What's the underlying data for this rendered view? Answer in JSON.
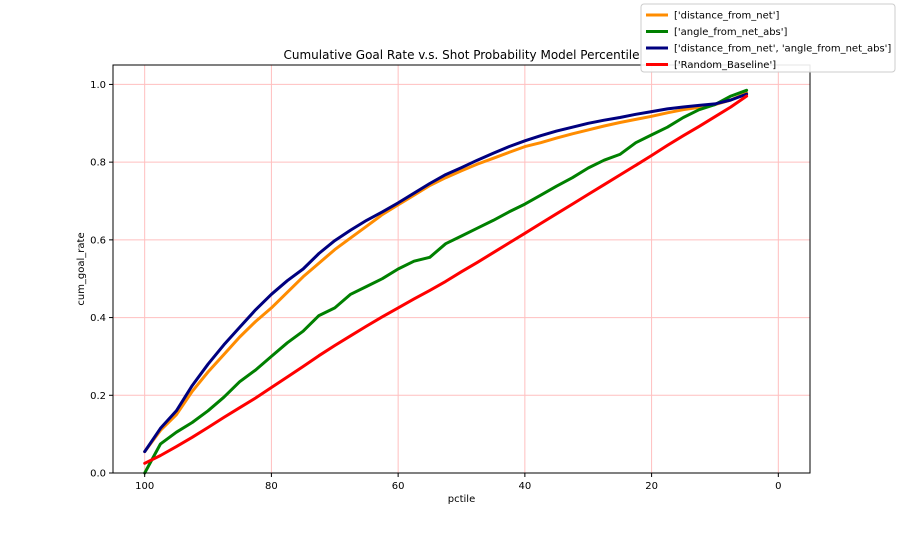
{
  "chart_data": {
    "type": "line",
    "title": "Cumulative Goal Rate v.s. Shot Probability Model Percentile",
    "xlabel": "pctile",
    "ylabel": "cum_goal_rate",
    "xlim": [
      105,
      -5
    ],
    "ylim": [
      0,
      1.05
    ],
    "x_ticks": [
      100,
      80,
      60,
      40,
      20,
      0
    ],
    "y_ticks": [
      0.0,
      0.2,
      0.4,
      0.6,
      0.8,
      1.0
    ],
    "x_tick_labels": [
      "100",
      "80",
      "60",
      "40",
      "20",
      "0"
    ],
    "y_tick_labels": [
      "0.0",
      "0.2",
      "0.4",
      "0.6",
      "0.8",
      "1.0"
    ],
    "grid": true,
    "grid_color": "#ffbfbf",
    "legend_position": "top-right",
    "x": [
      100,
      97.5,
      95,
      92.5,
      90,
      87.5,
      85,
      82.5,
      80,
      77.5,
      75,
      72.5,
      70,
      67.5,
      65,
      62.5,
      60,
      57.5,
      55,
      52.5,
      50,
      47.5,
      45,
      42.5,
      40,
      37.5,
      35,
      32.5,
      30,
      27.5,
      25,
      22.5,
      20,
      17.5,
      15,
      12.5,
      10,
      7.5,
      5
    ],
    "series": [
      {
        "name": "['distance_from_net']",
        "color": "#ff8c00",
        "values": [
          0.055,
          0.11,
          0.15,
          0.21,
          0.26,
          0.305,
          0.35,
          0.39,
          0.425,
          0.465,
          0.505,
          0.54,
          0.575,
          0.605,
          0.635,
          0.665,
          0.69,
          0.715,
          0.74,
          0.76,
          0.778,
          0.795,
          0.81,
          0.825,
          0.84,
          0.85,
          0.862,
          0.873,
          0.883,
          0.893,
          0.902,
          0.91,
          0.918,
          0.927,
          0.935,
          0.941,
          0.948,
          0.96,
          0.978
        ]
      },
      {
        "name": "['angle_from_net_abs']",
        "color": "#008000",
        "values": [
          0.0,
          0.075,
          0.105,
          0.13,
          0.16,
          0.195,
          0.235,
          0.265,
          0.3,
          0.335,
          0.365,
          0.405,
          0.425,
          0.46,
          0.48,
          0.5,
          0.525,
          0.545,
          0.555,
          0.59,
          0.61,
          0.63,
          0.65,
          0.672,
          0.692,
          0.715,
          0.738,
          0.76,
          0.785,
          0.805,
          0.82,
          0.85,
          0.87,
          0.89,
          0.915,
          0.935,
          0.948,
          0.97,
          0.985
        ]
      },
      {
        "name": "['distance_from_net', 'angle_from_net_abs']",
        "color": "#00007f",
        "values": [
          0.055,
          0.115,
          0.16,
          0.225,
          0.28,
          0.33,
          0.375,
          0.42,
          0.46,
          0.495,
          0.525,
          0.565,
          0.598,
          0.625,
          0.65,
          0.672,
          0.695,
          0.72,
          0.745,
          0.768,
          0.786,
          0.805,
          0.823,
          0.84,
          0.855,
          0.868,
          0.88,
          0.89,
          0.9,
          0.908,
          0.915,
          0.923,
          0.93,
          0.937,
          0.942,
          0.946,
          0.95,
          0.96,
          0.975
        ]
      },
      {
        "name": "['Random_Baseline']",
        "color": "#ff0000",
        "values": [
          0.025,
          0.045,
          0.068,
          0.092,
          0.117,
          0.143,
          0.168,
          0.193,
          0.22,
          0.247,
          0.274,
          0.302,
          0.328,
          0.353,
          0.378,
          0.402,
          0.425,
          0.448,
          0.47,
          0.493,
          0.518,
          0.542,
          0.567,
          0.592,
          0.617,
          0.642,
          0.667,
          0.692,
          0.717,
          0.742,
          0.767,
          0.792,
          0.817,
          0.843,
          0.868,
          0.892,
          0.917,
          0.942,
          0.97
        ]
      }
    ]
  }
}
